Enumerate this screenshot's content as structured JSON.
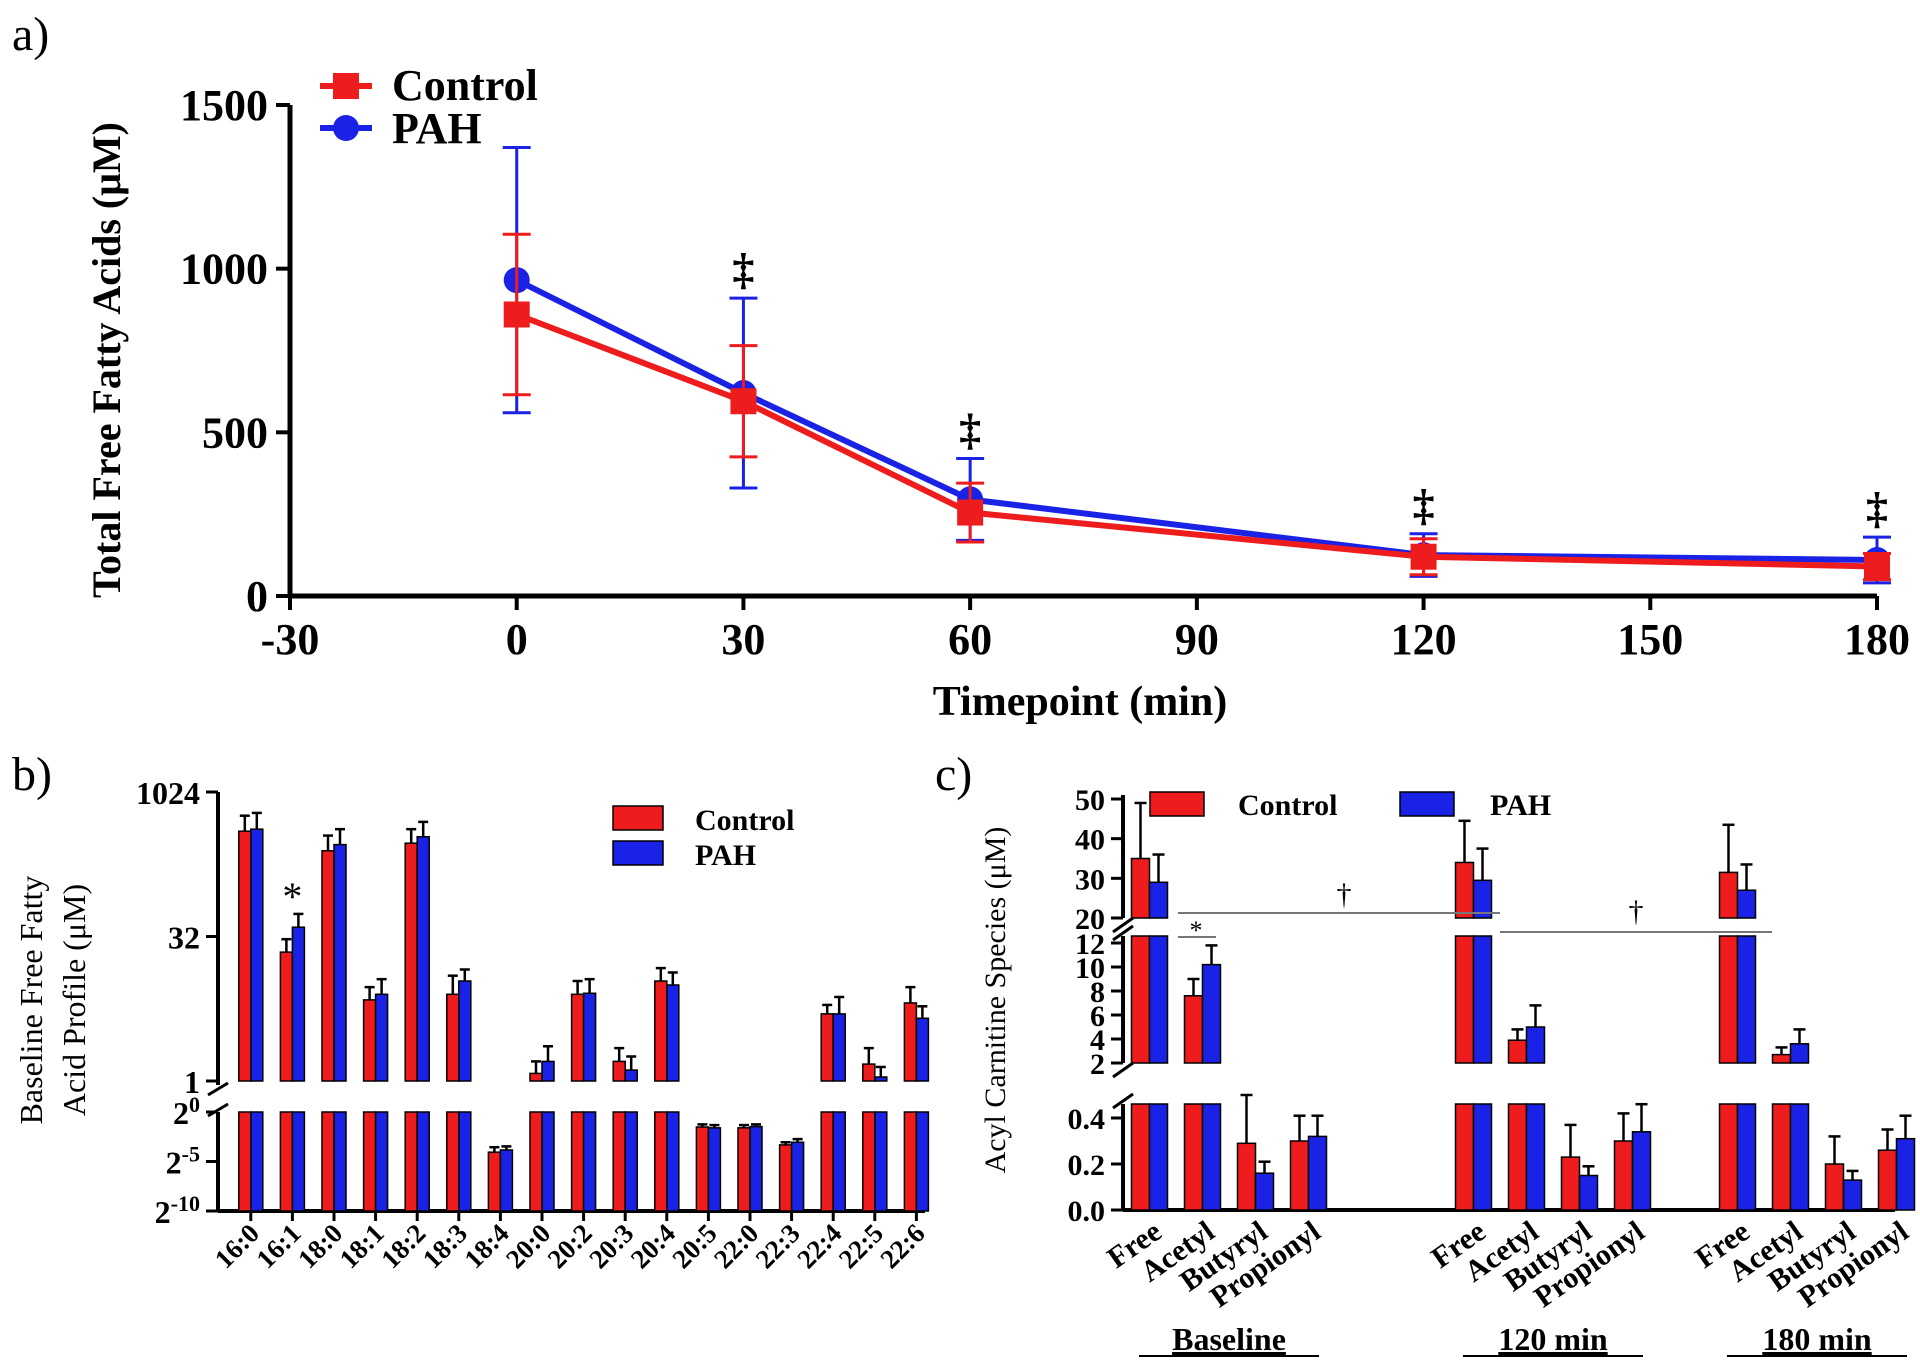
{
  "colors": {
    "control": "#ee1c1c",
    "pah": "#1a22e6",
    "axis": "#000000",
    "line": "#777777"
  },
  "chart_data": [
    {
      "type": "line",
      "panel_label": "a)",
      "xlabel": "Timepoint (min)",
      "ylabel": "Total Free Fatty Acids (μM)",
      "xlim": [
        -30,
        180
      ],
      "ylim": [
        0,
        1500
      ],
      "x_ticks": [
        "-30",
        "0",
        "30",
        "60",
        "90",
        "120",
        "150",
        "180"
      ],
      "y_ticks": [
        "0",
        "500",
        "1000",
        "1500"
      ],
      "series": [
        {
          "name": "Control",
          "marker": "square",
          "x": [
            0,
            30,
            60,
            120,
            180
          ],
          "y": [
            860,
            595,
            255,
            120,
            90
          ],
          "err": [
            245,
            170,
            90,
            55,
            40
          ]
        },
        {
          "name": "PAH",
          "marker": "circle",
          "x": [
            0,
            30,
            60,
            120,
            180
          ],
          "y": [
            965,
            620,
            295,
            125,
            110
          ],
          "err": [
            405,
            290,
            125,
            65,
            70
          ]
        }
      ],
      "annotations": [
        {
          "x": 30,
          "text": "‡"
        },
        {
          "x": 60,
          "text": "‡"
        },
        {
          "x": 120,
          "text": "‡"
        },
        {
          "x": 180,
          "text": "‡"
        }
      ],
      "legend": "top-left",
      "grid": false
    },
    {
      "type": "bar",
      "panel_label": "b)",
      "ylabel_lines": [
        "Baseline Free Fatty",
        "Acid Profile (μM)"
      ],
      "y_scale": "log2 with broken axis",
      "upper_ticks": [
        "1",
        "32",
        "1024"
      ],
      "lower_ticks": [
        "0",
        "-5",
        "-10"
      ],
      "lower_tick_base": "2",
      "categories": [
        "16:0",
        "16:1",
        "18:0",
        "18:1",
        "18:2",
        "18:3",
        "18:4",
        "20:0",
        "20:2",
        "20:3",
        "20:4",
        "20:5",
        "22:0",
        "22:3",
        "22:4",
        "22:5",
        "22:6"
      ],
      "series": [
        {
          "name": "Control",
          "values": [
            400,
            22,
            250,
            7,
            300,
            8,
            0.06,
            1.2,
            8,
            1.6,
            11,
            0.35,
            0.33,
            0.1,
            5,
            1.5,
            6.5
          ],
          "err_upper": [
            580,
            30,
            360,
            9.5,
            420,
            12.5,
            0.085,
            1.6,
            11,
            2.2,
            15,
            0.42,
            0.4,
            0.12,
            6.2,
            2.2,
            9.5
          ]
        },
        {
          "name": "PAH",
          "values": [
            420,
            40,
            290,
            8,
            350,
            11,
            0.07,
            1.6,
            8.2,
            1.3,
            10,
            0.33,
            0.36,
            0.12,
            5,
            1.1,
            4.5
          ],
          "err_upper": [
            620,
            55,
            420,
            11.5,
            500,
            14.5,
            0.09,
            2.3,
            11.5,
            1.8,
            13.5,
            0.4,
            0.42,
            0.15,
            7.5,
            1.4,
            6
          ]
        }
      ],
      "annotations": [
        {
          "category": "16:1",
          "text": "*"
        }
      ],
      "legend": "top-right"
    },
    {
      "type": "bar",
      "panel_label": "c)",
      "ylabel": "Acyl Carnitine Species (μM)",
      "y_scale": "three-segment broken axis",
      "upper_ticks": [
        "20",
        "30",
        "40",
        "50"
      ],
      "middle_ticks": [
        "2",
        "4",
        "6",
        "8",
        "10",
        "12"
      ],
      "lower_ticks": [
        "0.0",
        "0.2",
        "0.4"
      ],
      "groups": [
        "Baseline",
        "120 min",
        "180 min"
      ],
      "categories": [
        "Free",
        "Acetyl",
        "Butyryl",
        "Propionyl"
      ],
      "series": [
        {
          "name": "Control",
          "values": [
            [
              35,
              7.6,
              0.29,
              0.3
            ],
            [
              34,
              3.9,
              0.23,
              0.3
            ],
            [
              31.5,
              2.7,
              0.2,
              0.26
            ]
          ],
          "err_upper": [
            [
              49,
              9,
              0.5,
              0.41
            ],
            [
              44.5,
              4.8,
              0.37,
              0.42
            ],
            [
              43.5,
              3.3,
              0.32,
              0.35
            ]
          ]
        },
        {
          "name": "PAH",
          "values": [
            [
              29,
              10.2,
              0.16,
              0.32
            ],
            [
              29.5,
              5,
              0.15,
              0.34
            ],
            [
              27,
              3.6,
              0.13,
              0.31
            ]
          ],
          "err_upper": [
            [
              36,
              11.8,
              0.21,
              0.41
            ],
            [
              37.5,
              6.8,
              0.19,
              0.46
            ],
            [
              33.5,
              4.8,
              0.17,
              0.41
            ]
          ]
        }
      ],
      "annotations": [
        {
          "text": "*",
          "between": "Baseline Acetyl"
        },
        {
          "text": "†",
          "between": "Baseline–120 min"
        },
        {
          "text": "†",
          "between": "120 min–180 min"
        }
      ],
      "legend": "top"
    }
  ]
}
